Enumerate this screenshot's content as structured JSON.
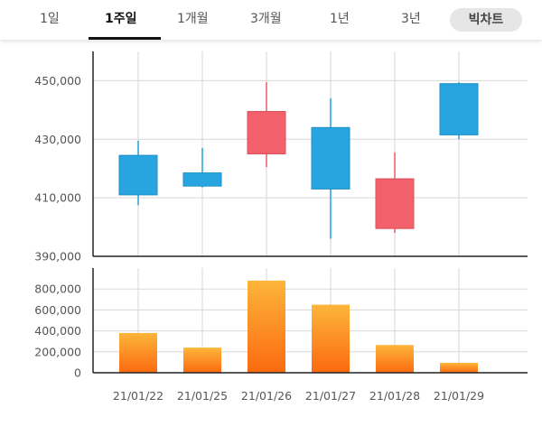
{
  "tabs": [
    {
      "label": "1일"
    },
    {
      "label": "1주일"
    },
    {
      "label": "1개월"
    },
    {
      "label": "3개월"
    },
    {
      "label": "1년"
    },
    {
      "label": "3년"
    }
  ],
  "active_tab": "1주일",
  "big_chart_button": "빅차트",
  "colors": {
    "up": "#f2606b",
    "down": "#28a5e0",
    "volume_top": "#fdb53a",
    "volume_bottom": "#fb6a10"
  },
  "chart_data": [
    {
      "type": "candlestick",
      "categories": [
        "21/01/22",
        "21/01/25",
        "21/01/26",
        "21/01/27",
        "21/01/28",
        "21/01/29"
      ],
      "ohlc": [
        {
          "open": 424500,
          "high": 429500,
          "low": 407500,
          "close": 411000
        },
        {
          "open": 418500,
          "high": 427000,
          "low": 413500,
          "close": 414000
        },
        {
          "open": 425000,
          "high": 449500,
          "low": 420500,
          "close": 439500
        },
        {
          "open": 434000,
          "high": 444000,
          "low": 396000,
          "close": 413000
        },
        {
          "open": 399500,
          "high": 425500,
          "low": 398000,
          "close": 416500
        },
        {
          "open": 449000,
          "high": 449500,
          "low": 430000,
          "close": 431500
        }
      ],
      "y_ticks": [
        "450,000",
        "430,000",
        "410,000",
        "390,000"
      ],
      "y_tick_values": [
        450000,
        430000,
        410000,
        390000
      ],
      "ylim": [
        390000,
        460000
      ],
      "grid": true
    },
    {
      "type": "bar",
      "categories": [
        "21/01/22",
        "21/01/25",
        "21/01/26",
        "21/01/27",
        "21/01/28",
        "21/01/29"
      ],
      "values": [
        380000,
        240000,
        880000,
        650000,
        265000,
        95000
      ],
      "y_ticks": [
        "800,000",
        "600,000",
        "400,000",
        "200,000",
        "0"
      ],
      "y_tick_values": [
        800000,
        600000,
        400000,
        200000,
        0
      ],
      "ylim": [
        0,
        1000000
      ],
      "grid": true
    }
  ]
}
